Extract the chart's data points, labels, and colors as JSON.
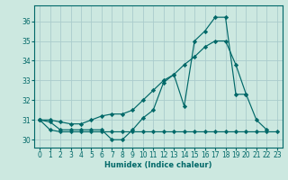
{
  "xlabel": "Humidex (Indice chaleur)",
  "bg_color": "#cce8e0",
  "grid_color": "#aacccc",
  "line_color": "#006868",
  "x_values": [
    0,
    1,
    2,
    3,
    4,
    5,
    6,
    7,
    8,
    9,
    10,
    11,
    12,
    13,
    14,
    15,
    16,
    17,
    18,
    19,
    20,
    21,
    22,
    23
  ],
  "line1_jagged": [
    31.0,
    30.9,
    30.5,
    30.5,
    30.5,
    30.5,
    30.5,
    30.0,
    30.0,
    30.5,
    31.1,
    31.5,
    32.9,
    33.3,
    31.7,
    35.0,
    35.5,
    36.2,
    36.2,
    32.3,
    32.3,
    31.0,
    30.5,
    null
  ],
  "line2_smooth": [
    31.0,
    31.0,
    30.9,
    30.8,
    30.8,
    31.0,
    31.2,
    31.3,
    31.3,
    31.5,
    32.0,
    32.5,
    33.0,
    33.3,
    33.8,
    34.2,
    34.7,
    35.0,
    35.0,
    33.8,
    32.3,
    null,
    null,
    null
  ],
  "line3_flat": [
    31.0,
    30.5,
    30.4,
    30.4,
    30.4,
    30.4,
    30.4,
    30.4,
    30.4,
    30.4,
    30.4,
    30.4,
    30.4,
    30.4,
    30.4,
    30.4,
    30.4,
    30.4,
    30.4,
    30.4,
    30.4,
    30.4,
    30.4,
    30.4
  ],
  "ylim": [
    29.6,
    36.8
  ],
  "xlim": [
    -0.5,
    23.5
  ],
  "yticks": [
    30,
    31,
    32,
    33,
    34,
    35,
    36
  ],
  "xticks": [
    0,
    1,
    2,
    3,
    4,
    5,
    6,
    7,
    8,
    9,
    10,
    11,
    12,
    13,
    14,
    15,
    16,
    17,
    18,
    19,
    20,
    21,
    22,
    23
  ],
  "xlabel_fontsize": 6.0,
  "tick_fontsize": 5.5
}
